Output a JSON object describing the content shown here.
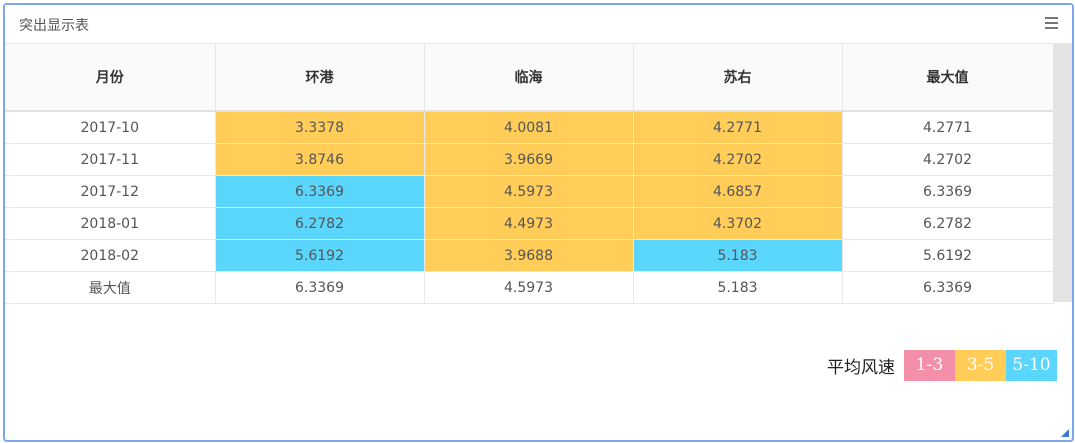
{
  "panel": {
    "title": "突出显示表"
  },
  "table": {
    "headers": [
      "月份",
      "环港",
      "临海",
      "苏右",
      "最大值"
    ],
    "rows": [
      {
        "cells": [
          "2017-10",
          "3.3378",
          "4.0081",
          "4.2771",
          "4.2771"
        ],
        "levels": [
          "",
          "mid",
          "mid",
          "mid",
          ""
        ]
      },
      {
        "cells": [
          "2017-11",
          "3.8746",
          "3.9669",
          "4.2702",
          "4.2702"
        ],
        "levels": [
          "",
          "mid",
          "mid",
          "mid",
          ""
        ]
      },
      {
        "cells": [
          "2017-12",
          "6.3369",
          "4.5973",
          "4.6857",
          "6.3369"
        ],
        "levels": [
          "",
          "high",
          "mid",
          "mid",
          ""
        ]
      },
      {
        "cells": [
          "2018-01",
          "6.2782",
          "4.4973",
          "4.3702",
          "6.2782"
        ],
        "levels": [
          "",
          "high",
          "mid",
          "mid",
          ""
        ]
      },
      {
        "cells": [
          "2018-02",
          "5.6192",
          "3.9688",
          "5.183",
          "5.6192"
        ],
        "levels": [
          "",
          "high",
          "mid",
          "high",
          ""
        ]
      },
      {
        "cells": [
          "最大值",
          "6.3369",
          "4.5973",
          "5.183",
          "6.3369"
        ],
        "levels": [
          "",
          "",
          "",
          "",
          ""
        ]
      }
    ]
  },
  "legend": {
    "title": "平均风速",
    "items": [
      {
        "label": "1-3",
        "color": "#f48fa9"
      },
      {
        "label": "3-5",
        "color": "#ffcd58"
      },
      {
        "label": "5-10",
        "color": "#5ad6fd"
      }
    ]
  }
}
